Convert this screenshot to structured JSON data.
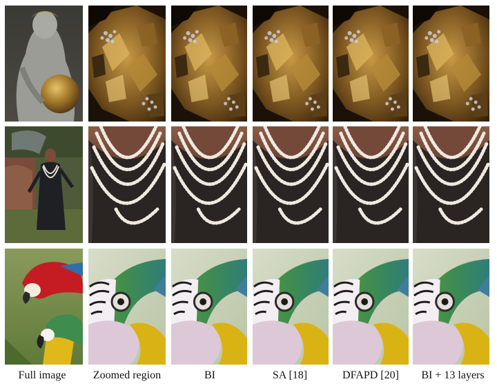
{
  "figure": {
    "column_labels": [
      "Full image",
      "Zoomed region",
      "BI",
      "SA [18]",
      "DFAPD [20]",
      "BI + 13 layers"
    ],
    "rows": [
      {
        "subject": "statue-gold-ball"
      },
      {
        "subject": "woman-pearl-necklace"
      },
      {
        "subject": "macaw-parrot"
      }
    ]
  }
}
